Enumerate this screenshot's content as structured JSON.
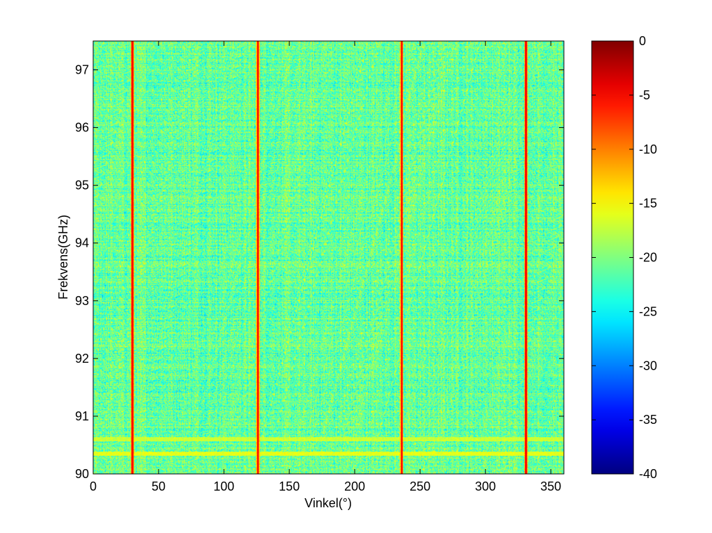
{
  "chart_data": {
    "type": "heatmap",
    "title": "",
    "xlabel": "Vinkel(°)",
    "ylabel": "Frekvens(GHz)",
    "xlim": [
      0,
      360
    ],
    "ylim": [
      90,
      97.5
    ],
    "x_ticks": [
      0,
      50,
      100,
      150,
      200,
      250,
      300,
      350
    ],
    "y_ticks": [
      90,
      91,
      92,
      93,
      94,
      95,
      96,
      97
    ],
    "colorbar": {
      "colormap": "jet",
      "clim": [
        -40,
        0
      ],
      "ticks": [
        0,
        -5,
        -10,
        -15,
        -20,
        -25,
        -30,
        -35,
        -40
      ]
    },
    "background_level": -21,
    "background_range": [
      -30,
      -13
    ],
    "peaks": [
      {
        "angle": 30,
        "value": -5
      },
      {
        "angle": 126,
        "value": -5
      },
      {
        "angle": 236,
        "value": -5
      },
      {
        "angle": 331,
        "value": -5
      }
    ],
    "horizontal_bands": [
      {
        "freq": 90.35,
        "value": -16
      },
      {
        "freq": 90.6,
        "value": -17
      }
    ],
    "grid": false
  }
}
